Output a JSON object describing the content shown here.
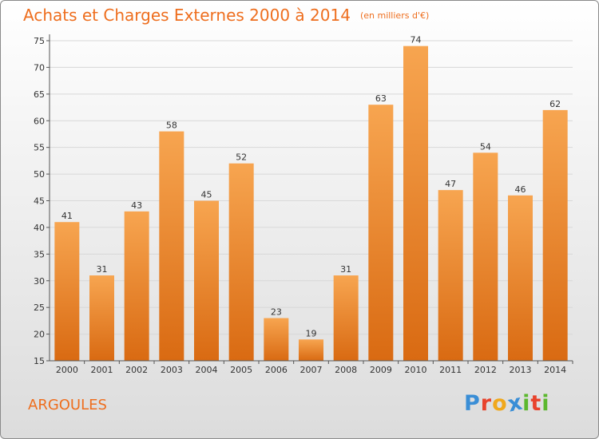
{
  "title": "Achats et Charges Externes 2000 à 2014",
  "unit": "(en milliers d'€)",
  "commune": "ARGOULES",
  "logo": {
    "letters": [
      "P",
      "r",
      "o",
      "x",
      "i",
      "t",
      "i"
    ],
    "colors": [
      "#3a8ed6",
      "#e8432c",
      "#f0a81c",
      "#3a8ed6",
      "#5cb82e",
      "#e8432c",
      "#5cb82e"
    ]
  },
  "colors": {
    "accent": "#ee6e1e",
    "bar_top": "#f7a550",
    "bar_bottom": "#d96a12",
    "grid": "#d8d8d8",
    "axis": "#555555"
  },
  "chart_data": {
    "type": "bar",
    "categories": [
      "2000",
      "2001",
      "2002",
      "2003",
      "2004",
      "2005",
      "2006",
      "2007",
      "2008",
      "2009",
      "2010",
      "2011",
      "2012",
      "2013",
      "2014"
    ],
    "values": [
      41,
      31,
      43,
      58,
      45,
      52,
      23,
      19,
      31,
      63,
      74,
      47,
      54,
      46,
      62
    ],
    "ylim": [
      15,
      75
    ],
    "yticks": [
      15,
      20,
      25,
      30,
      35,
      40,
      45,
      50,
      55,
      60,
      65,
      70,
      75
    ],
    "grid": true,
    "data_labels": true
  }
}
